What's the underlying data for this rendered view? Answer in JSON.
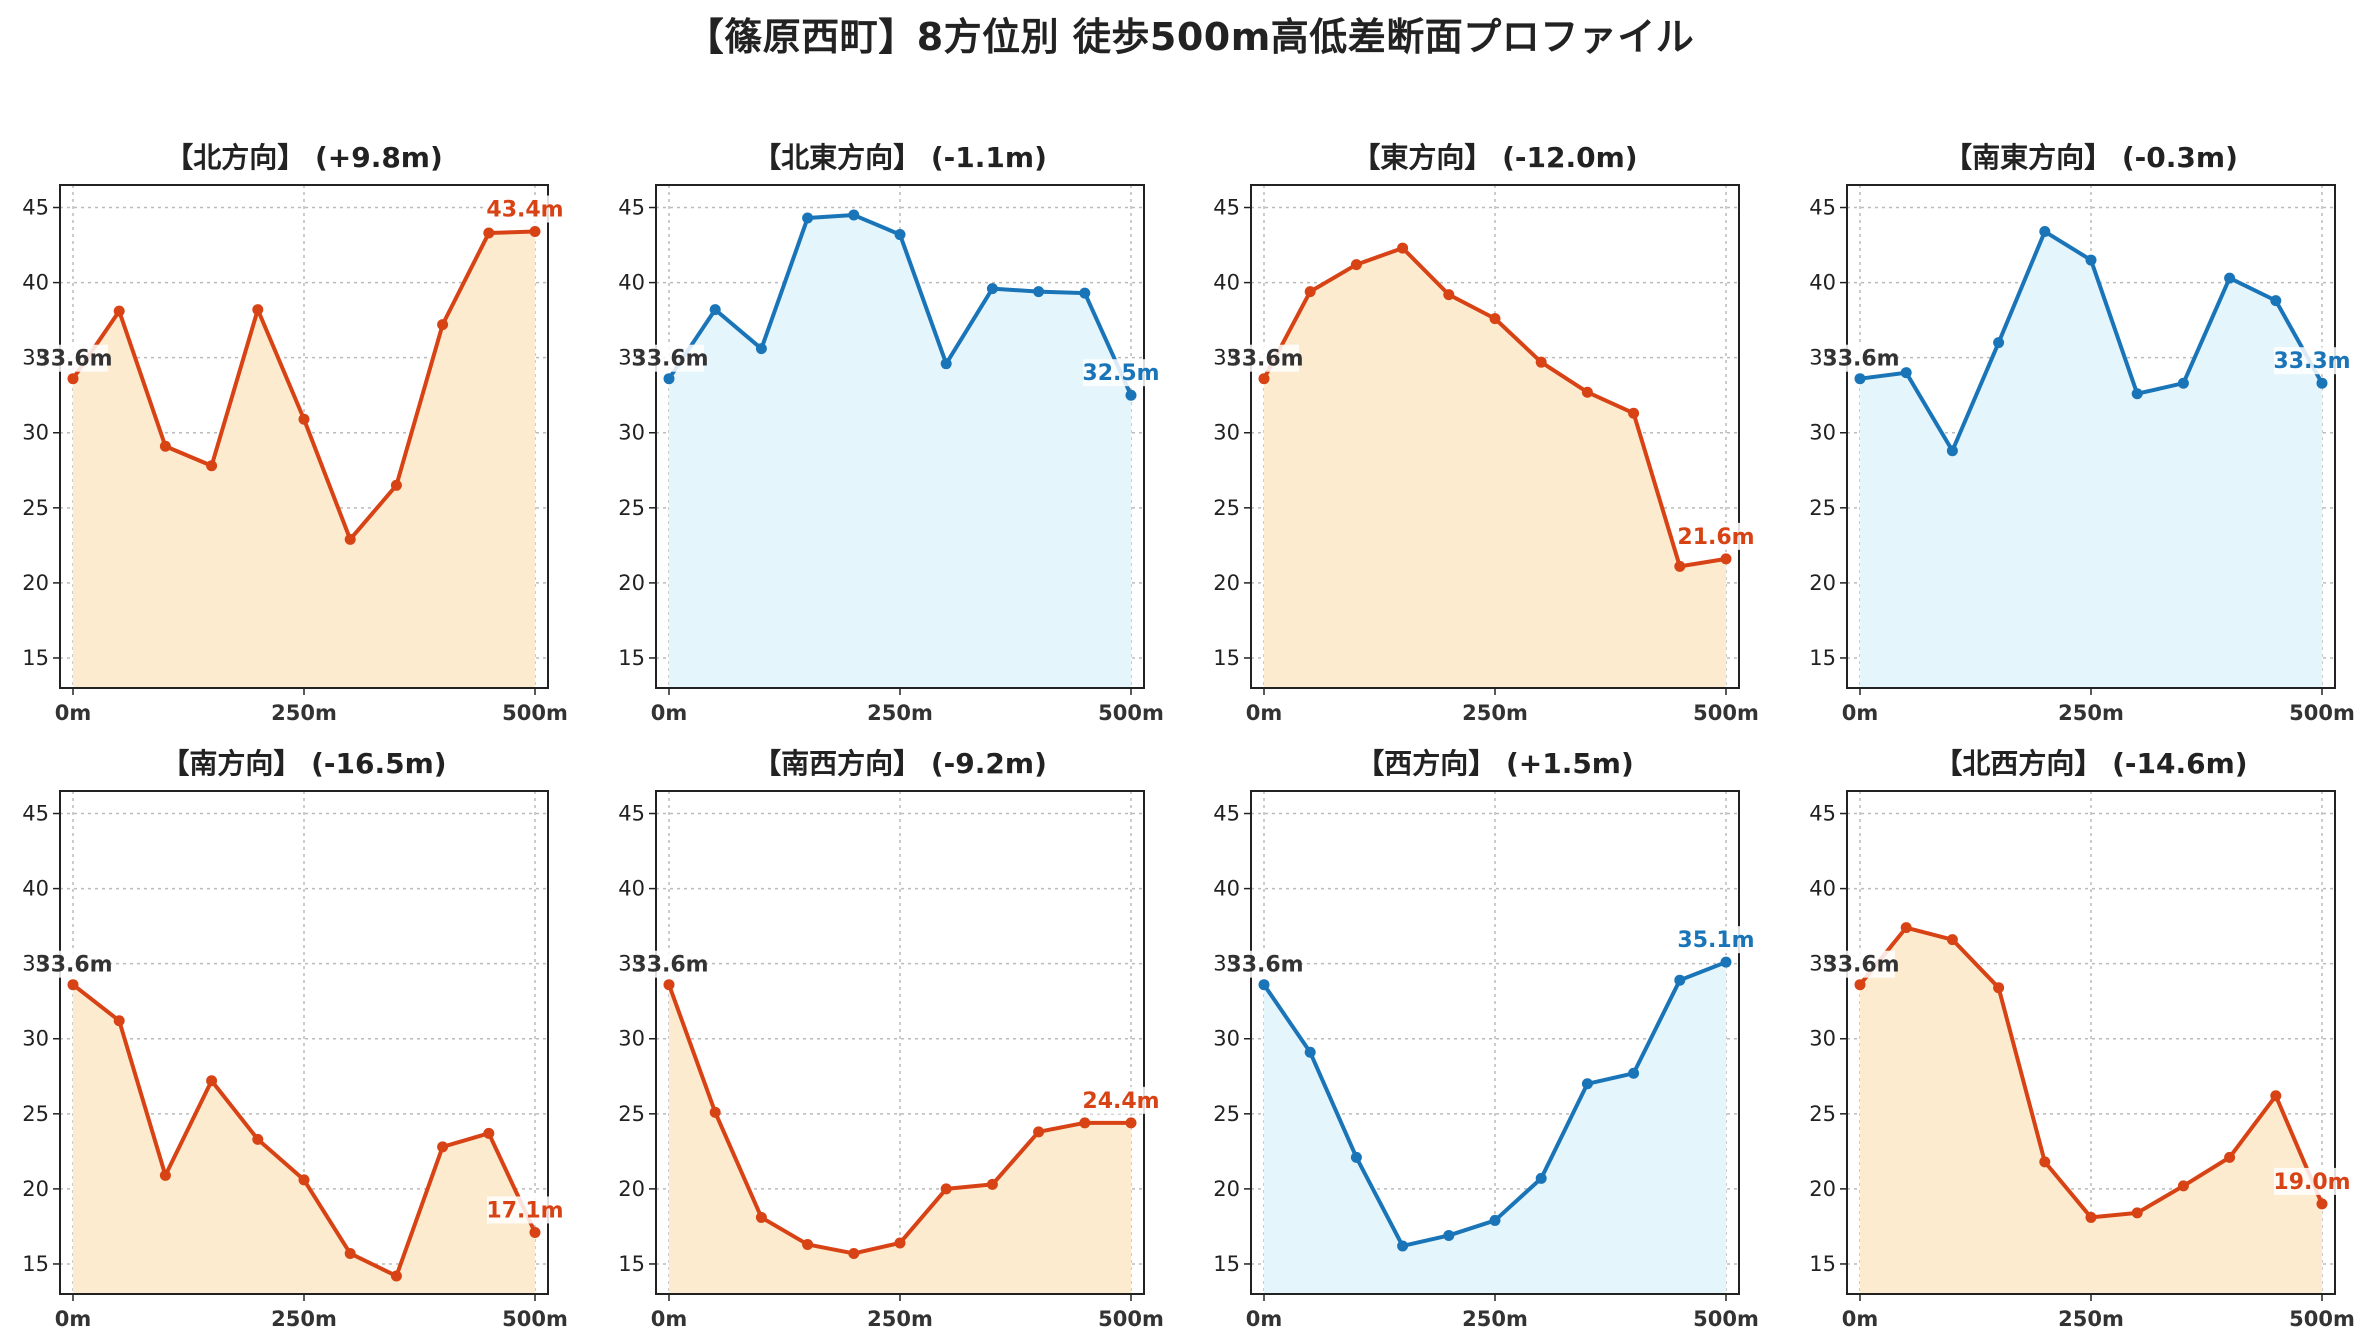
{
  "title": "【篠原西町】8方位別 徒歩500m高低差断面プロファイル",
  "colors": {
    "up_line": "#d84315",
    "up_fill": "#fdebd0",
    "down_line": "#1a75b8",
    "down_fill": "#e5f5fc",
    "start_label": "#333333"
  },
  "chart_data": [
    {
      "type": "area",
      "title": "【北方向】 (+9.8m)",
      "color": "up",
      "x": [
        0,
        50,
        100,
        150,
        200,
        250,
        300,
        350,
        400,
        450,
        500
      ],
      "y": [
        33.6,
        38.1,
        29.1,
        27.8,
        38.2,
        30.9,
        22.9,
        26.5,
        37.2,
        43.3,
        43.4
      ],
      "start_label": "33.6m",
      "end_label": "43.4m",
      "xticks": [
        "0m",
        "250m",
        "500m"
      ],
      "ylim": [
        13,
        46.5
      ],
      "yticks": [
        15,
        20,
        25,
        30,
        35,
        40,
        45
      ],
      "grid": true
    },
    {
      "type": "area",
      "title": "【北東方向】 (-1.1m)",
      "color": "down",
      "x": [
        0,
        50,
        100,
        150,
        200,
        250,
        300,
        350,
        400,
        450,
        500
      ],
      "y": [
        33.6,
        38.2,
        35.6,
        44.3,
        44.5,
        43.2,
        34.6,
        39.6,
        39.4,
        39.3,
        32.5
      ],
      "start_label": "33.6m",
      "end_label": "32.5m",
      "xticks": [
        "0m",
        "250m",
        "500m"
      ],
      "ylim": [
        13,
        46.5
      ],
      "yticks": [
        15,
        20,
        25,
        30,
        35,
        40,
        45
      ],
      "grid": true
    },
    {
      "type": "area",
      "title": "【東方向】 (-12.0m)",
      "color": "up",
      "x": [
        0,
        50,
        100,
        150,
        200,
        250,
        300,
        350,
        400,
        450,
        500
      ],
      "y": [
        33.6,
        39.4,
        41.2,
        42.3,
        39.2,
        37.6,
        34.7,
        32.7,
        31.3,
        21.1,
        21.6
      ],
      "start_label": "33.6m",
      "end_label": "21.6m",
      "xticks": [
        "0m",
        "250m",
        "500m"
      ],
      "ylim": [
        13,
        46.5
      ],
      "yticks": [
        15,
        20,
        25,
        30,
        35,
        40,
        45
      ],
      "grid": true
    },
    {
      "type": "area",
      "title": "【南東方向】 (-0.3m)",
      "color": "down",
      "x": [
        0,
        50,
        100,
        150,
        200,
        250,
        300,
        350,
        400,
        450,
        500
      ],
      "y": [
        33.6,
        34.0,
        28.8,
        36.0,
        43.4,
        41.5,
        32.6,
        33.3,
        40.3,
        38.8,
        33.3
      ],
      "start_label": "33.6m",
      "end_label": "33.3m",
      "xticks": [
        "0m",
        "250m",
        "500m"
      ],
      "ylim": [
        13,
        46.5
      ],
      "yticks": [
        15,
        20,
        25,
        30,
        35,
        40,
        45
      ],
      "grid": true
    },
    {
      "type": "area",
      "title": "【南方向】 (-16.5m)",
      "color": "up",
      "x": [
        0,
        50,
        100,
        150,
        200,
        250,
        300,
        350,
        400,
        450,
        500
      ],
      "y": [
        33.6,
        31.2,
        20.9,
        27.2,
        23.3,
        20.6,
        15.7,
        14.2,
        22.8,
        23.7,
        17.1
      ],
      "start_label": "33.6m",
      "end_label": "17.1m",
      "xticks": [
        "0m",
        "250m",
        "500m"
      ],
      "ylim": [
        13,
        46.5
      ],
      "yticks": [
        15,
        20,
        25,
        30,
        35,
        40,
        45
      ],
      "grid": true
    },
    {
      "type": "area",
      "title": "【南西方向】 (-9.2m)",
      "color": "up",
      "x": [
        0,
        50,
        100,
        150,
        200,
        250,
        300,
        350,
        400,
        450,
        500
      ],
      "y": [
        33.6,
        25.1,
        18.1,
        16.3,
        15.7,
        16.4,
        20.0,
        20.3,
        23.8,
        24.4,
        24.4
      ],
      "start_label": "33.6m",
      "end_label": "24.4m",
      "xticks": [
        "0m",
        "250m",
        "500m"
      ],
      "ylim": [
        13,
        46.5
      ],
      "yticks": [
        15,
        20,
        25,
        30,
        35,
        40,
        45
      ],
      "grid": true
    },
    {
      "type": "area",
      "title": "【西方向】 (+1.5m)",
      "color": "down",
      "x": [
        0,
        50,
        100,
        150,
        200,
        250,
        300,
        350,
        400,
        450,
        500
      ],
      "y": [
        33.6,
        29.1,
        22.1,
        16.2,
        16.9,
        17.9,
        20.7,
        27.0,
        27.7,
        33.9,
        35.1
      ],
      "start_label": "33.6m",
      "end_label": "35.1m",
      "xticks": [
        "0m",
        "250m",
        "500m"
      ],
      "ylim": [
        13,
        46.5
      ],
      "yticks": [
        15,
        20,
        25,
        30,
        35,
        40,
        45
      ],
      "grid": true
    },
    {
      "type": "area",
      "title": "【北西方向】 (-14.6m)",
      "color": "up",
      "x": [
        0,
        50,
        100,
        150,
        200,
        250,
        300,
        350,
        400,
        450,
        500
      ],
      "y": [
        33.6,
        37.4,
        36.6,
        33.4,
        21.8,
        18.1,
        18.4,
        20.2,
        22.1,
        26.2,
        19.0
      ],
      "start_label": "33.6m",
      "end_label": "19.0m",
      "xticks": [
        "0m",
        "250m",
        "500m"
      ],
      "ylim": [
        13,
        46.5
      ],
      "yticks": [
        15,
        20,
        25,
        30,
        35,
        40,
        45
      ],
      "grid": true
    }
  ]
}
